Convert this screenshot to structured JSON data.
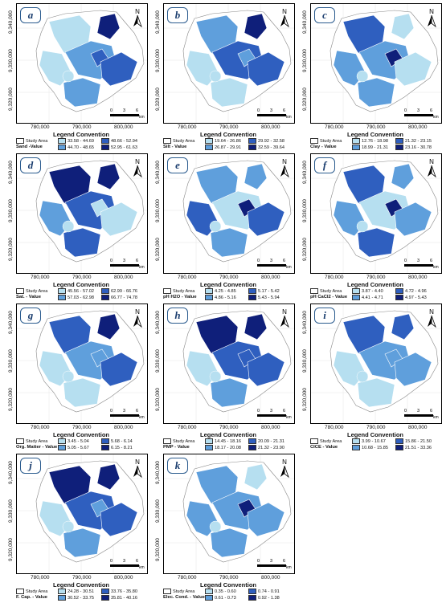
{
  "colors": {
    "c1": "#b6dff0",
    "c2": "#5f9fdc",
    "c3": "#2f5fbf",
    "c4": "#0f1f7a",
    "study": "#ffffff",
    "accent": "#2a5b8e"
  },
  "axes": {
    "y_ticks": [
      "9,340,000",
      "9,330,000",
      "9,320,000"
    ],
    "x_ticks": [
      "780,000",
      "790,000",
      "800,000"
    ],
    "north": "N",
    "scale_labels": [
      "0",
      "3",
      "6"
    ],
    "scale_unit": "km"
  },
  "legend_title": "Legend Convention",
  "study_area": "Study Area",
  "panels": [
    {
      "tag": "a",
      "variable": "Sand -Value",
      "classes": [
        "33.58 - 44.69",
        "44.70 - 48.65",
        "48.66 - 52.94",
        "52.95 - 61.63"
      ],
      "palette": "c1,c2,c4,c3,c1,c2,c3"
    },
    {
      "tag": "b",
      "variable": "Silt - Value",
      "classes": [
        "19.64 - 26.86",
        "26.87 - 29.91",
        "29.92 - 32.58",
        "32.59 - 39.64"
      ],
      "palette": "c2,c3,c4,c2,c1,c1,c3"
    },
    {
      "tag": "c",
      "variable": "Clay - Value",
      "classes": [
        "12.76 - 18.98",
        "18.99 - 21.31",
        "21.32 - 23.15",
        "23.16 - 30.78"
      ],
      "palette": "c3,c2,c1,c4,c2,c2,c1"
    },
    {
      "tag": "d",
      "variable": "Sat. - Value",
      "classes": [
        "45.56 - 57.02",
        "57.03 - 62.98",
        "62.99 - 66.76",
        "66.77 - 74.78"
      ],
      "palette": "c4,c3,c4,c1,c2,c3,c1"
    },
    {
      "tag": "e",
      "variable": "pH H2O - Value",
      "classes": [
        "4.25 - 4.85",
        "4.86 - 5.16",
        "5.17 - 5.42",
        "5.43 - 5.94"
      ],
      "palette": "c2,c1,c2,c4,c3,c2,c3"
    },
    {
      "tag": "f",
      "variable": "pH CaCl2 - Value",
      "classes": [
        "3.87 - 4.40",
        "4.41 - 4.71",
        "4.72 - 4.96",
        "4.97 - 5.43"
      ],
      "palette": "c3,c1,c2,c4,c2,c3,c2"
    },
    {
      "tag": "g",
      "variable": "Org. Matter - Value",
      "classes": [
        "3.45 - 5.04",
        "5.05 - 5.67",
        "5.68 - 6.14",
        "6.15 - 8.21"
      ],
      "palette": "c3,c2,c4,c2,c1,c1,c3"
    },
    {
      "tag": "h",
      "variable": "PMP - Value",
      "classes": [
        "14.45 - 18.16",
        "18.17 - 20.08",
        "20.09 - 21.31",
        "21.32 - 23.90"
      ],
      "palette": "c4,c3,c4,c3,c1,c2,c3"
    },
    {
      "tag": "i",
      "variable": "CICE - Value",
      "classes": [
        "3.99 - 10.67",
        "10.68 - 15.85",
        "15.86 - 21.50",
        "21.51 - 33.36"
      ],
      "palette": "c3,c2,c3,c2,c1,c1,c2"
    },
    {
      "tag": "j",
      "variable": "F. Cap. - Value",
      "classes": [
        "24.28 - 30.51",
        "30.52 - 33.75",
        "33.76 - 35.80",
        "35.81 - 40.16"
      ],
      "palette": "c4,c3,c4,c2,c1,c2,c3"
    },
    {
      "tag": "k",
      "variable": "Elec. Cond. - Value",
      "classes": [
        "0.35 - 0.60",
        "0.61 - 0.73",
        "0.74 - 0.91",
        "0.92 - 1.38"
      ],
      "palette": "c2,c2,c1,c4,c2,c2,c2"
    }
  ]
}
